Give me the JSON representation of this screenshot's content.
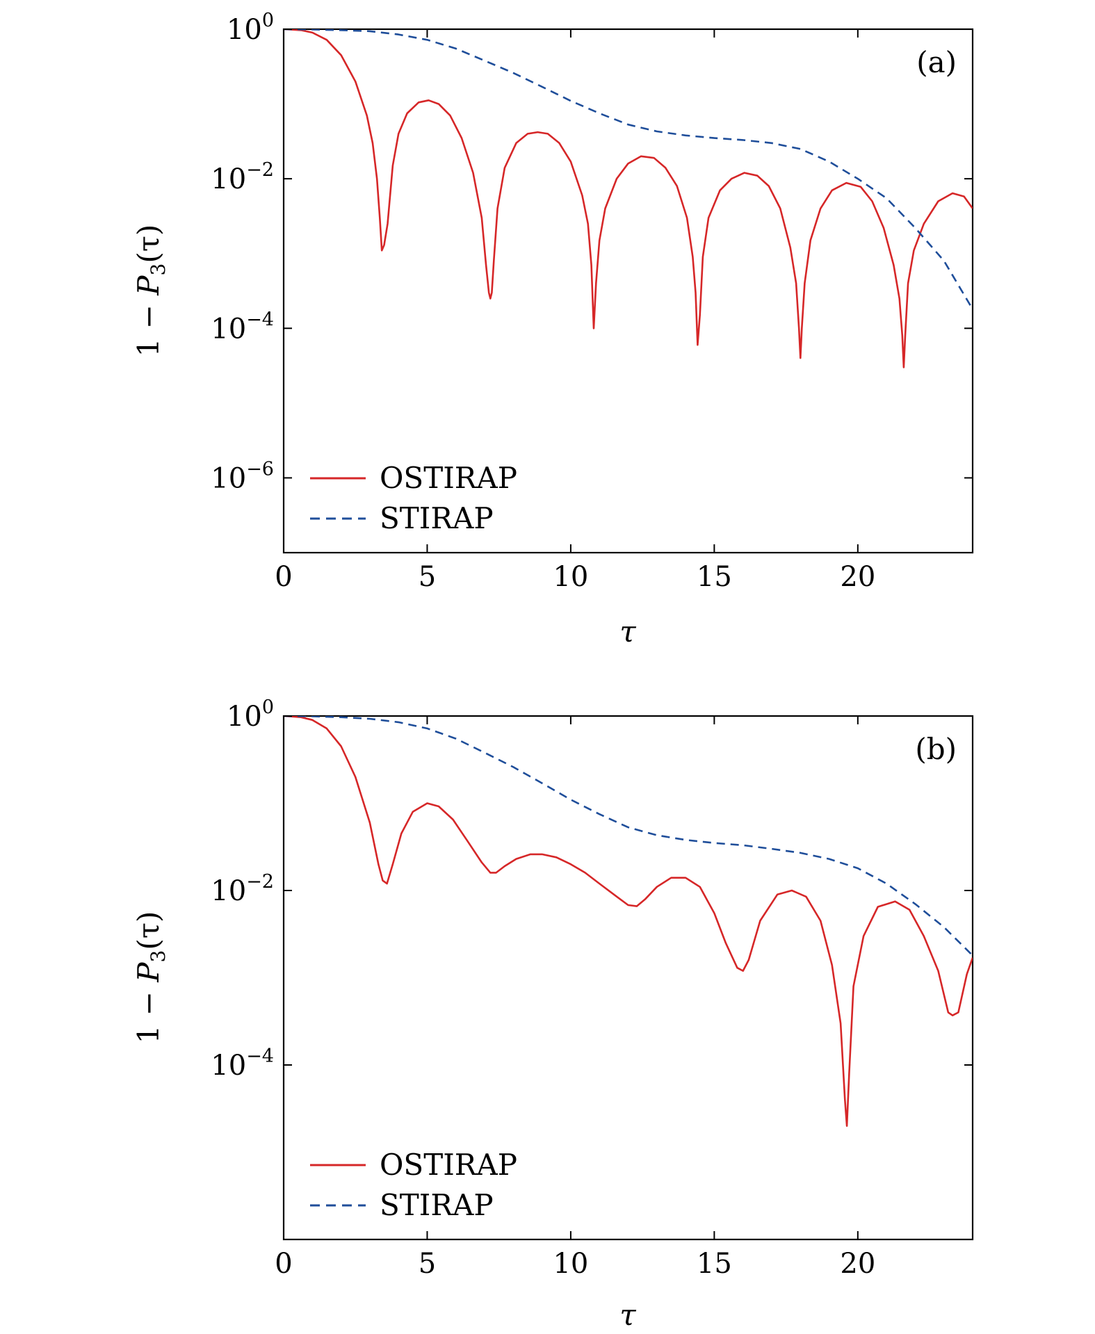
{
  "figure": {
    "x_axis_label": "τ",
    "y_axis_label_prefix": "1 − ",
    "y_axis_label_var": "P",
    "y_axis_label_sub": "3",
    "y_axis_label_suffix": "(τ)"
  },
  "colors": {
    "ostirap": "#d62728",
    "stirap": "#1f4e9a",
    "axis": "#000000"
  },
  "chart_data": [
    {
      "type": "line",
      "panel_label": "(a)",
      "xlabel": "τ",
      "ylabel": "1 − P3(τ)",
      "y_scale": "log",
      "xlim": [
        0,
        24
      ],
      "ylim": [
        1e-07,
        1
      ],
      "x_ticks": [
        0,
        5,
        10,
        15,
        20
      ],
      "y_ticks": [
        {
          "value": 1,
          "base": "10",
          "exp": "0"
        },
        {
          "value": 0.01,
          "base": "10",
          "exp": "−2"
        },
        {
          "value": 0.0001,
          "base": "10",
          "exp": "−4"
        },
        {
          "value": 1e-06,
          "base": "10",
          "exp": "−6"
        }
      ],
      "legend": {
        "position": "bottom-left",
        "entries": [
          "OSTIRAP",
          "STIRAP"
        ]
      },
      "series": [
        {
          "name": "OSTIRAP",
          "style": "solid",
          "x": [
            0,
            0.6,
            1.0,
            1.5,
            2.0,
            2.5,
            2.9,
            3.1,
            3.25,
            3.35,
            3.42,
            3.5,
            3.62,
            3.8,
            4.0,
            4.3,
            4.7,
            5.05,
            5.4,
            5.8,
            6.2,
            6.6,
            6.9,
            7.05,
            7.15,
            7.2,
            7.25,
            7.32,
            7.45,
            7.7,
            8.1,
            8.5,
            8.85,
            9.2,
            9.6,
            10.0,
            10.4,
            10.6,
            10.72,
            10.8,
            10.88,
            11.0,
            11.2,
            11.6,
            12.0,
            12.45,
            12.9,
            13.3,
            13.7,
            14.05,
            14.25,
            14.35,
            14.42,
            14.5,
            14.6,
            14.8,
            15.2,
            15.6,
            16.05,
            16.5,
            16.9,
            17.3,
            17.65,
            17.85,
            17.95,
            18.0,
            18.05,
            18.15,
            18.35,
            18.7,
            19.1,
            19.6,
            20.1,
            20.5,
            20.9,
            21.25,
            21.45,
            21.55,
            21.6,
            21.65,
            21.75,
            21.95,
            22.3,
            22.8,
            23.3,
            23.7,
            24.0
          ],
          "values": [
            1.0,
            0.97,
            0.9,
            0.72,
            0.45,
            0.2,
            0.07,
            0.03,
            0.01,
            0.003,
            0.0011,
            0.0013,
            0.0025,
            0.015,
            0.04,
            0.075,
            0.105,
            0.112,
            0.1,
            0.07,
            0.035,
            0.012,
            0.003,
            0.0007,
            0.0003,
            0.00025,
            0.0003,
            0.0008,
            0.004,
            0.014,
            0.03,
            0.04,
            0.042,
            0.04,
            0.03,
            0.017,
            0.006,
            0.0025,
            0.0007,
            0.0001,
            0.0004,
            0.0015,
            0.004,
            0.01,
            0.016,
            0.02,
            0.019,
            0.014,
            0.008,
            0.003,
            0.0009,
            0.0003,
            6e-05,
            0.00015,
            0.0009,
            0.003,
            0.007,
            0.01,
            0.012,
            0.011,
            0.008,
            0.004,
            0.0012,
            0.0004,
            0.0001,
            4e-05,
            0.0001,
            0.0004,
            0.0015,
            0.004,
            0.007,
            0.0088,
            0.0078,
            0.005,
            0.0022,
            0.0007,
            0.00025,
            8e-05,
            3e-05,
            8e-05,
            0.0004,
            0.0011,
            0.0025,
            0.005,
            0.0064,
            0.0058,
            0.004
          ]
        },
        {
          "name": "STIRAP",
          "style": "dashed",
          "x": [
            0,
            1,
            2,
            3,
            4,
            5,
            6,
            7,
            8,
            9,
            10,
            11,
            12,
            13,
            14,
            15,
            16,
            17,
            18,
            19,
            20,
            21,
            22,
            23,
            24
          ],
          "values": [
            1.0,
            0.99,
            0.97,
            0.94,
            0.85,
            0.72,
            0.55,
            0.38,
            0.26,
            0.17,
            0.11,
            0.075,
            0.053,
            0.043,
            0.038,
            0.035,
            0.033,
            0.03,
            0.025,
            0.017,
            0.01,
            0.0055,
            0.0022,
            0.0008,
            0.00018
          ]
        }
      ]
    },
    {
      "type": "line",
      "panel_label": "(b)",
      "xlabel": "τ",
      "ylabel": "1 − P3(τ)",
      "y_scale": "log",
      "xlim": [
        0,
        24
      ],
      "ylim": [
        1e-06,
        1
      ],
      "x_ticks": [
        0,
        5,
        10,
        15,
        20
      ],
      "y_ticks": [
        {
          "value": 1,
          "base": "10",
          "exp": "0"
        },
        {
          "value": 0.01,
          "base": "10",
          "exp": "−2"
        },
        {
          "value": 0.0001,
          "base": "10",
          "exp": "−4"
        }
      ],
      "legend": {
        "position": "bottom-left",
        "entries": [
          "OSTIRAP",
          "STIRAP"
        ]
      },
      "series": [
        {
          "name": "OSTIRAP",
          "style": "solid",
          "x": [
            0,
            0.6,
            1.0,
            1.5,
            2.0,
            2.5,
            3.0,
            3.3,
            3.45,
            3.6,
            3.8,
            4.1,
            4.5,
            5.0,
            5.4,
            5.9,
            6.4,
            6.9,
            7.2,
            7.4,
            7.7,
            8.1,
            8.6,
            9.0,
            9.5,
            10.0,
            10.5,
            11.0,
            11.5,
            12.0,
            12.3,
            12.6,
            13.0,
            13.5,
            14.0,
            14.5,
            15.0,
            15.4,
            15.8,
            16.0,
            16.2,
            16.6,
            17.2,
            17.7,
            18.2,
            18.7,
            19.1,
            19.4,
            19.55,
            19.62,
            19.7,
            19.85,
            20.2,
            20.7,
            21.3,
            21.8,
            22.3,
            22.8,
            23.15,
            23.3,
            23.5,
            23.8,
            24.0
          ],
          "values": [
            1.0,
            0.97,
            0.9,
            0.72,
            0.45,
            0.2,
            0.06,
            0.02,
            0.013,
            0.012,
            0.02,
            0.045,
            0.08,
            0.1,
            0.092,
            0.065,
            0.037,
            0.021,
            0.016,
            0.016,
            0.019,
            0.023,
            0.026,
            0.026,
            0.024,
            0.02,
            0.016,
            0.012,
            0.009,
            0.0068,
            0.0066,
            0.008,
            0.011,
            0.014,
            0.014,
            0.011,
            0.0055,
            0.0025,
            0.0013,
            0.0012,
            0.0016,
            0.0045,
            0.009,
            0.01,
            0.0085,
            0.0045,
            0.0014,
            0.0003,
            4e-05,
            2e-05,
            8e-05,
            0.0008,
            0.003,
            0.0065,
            0.0075,
            0.006,
            0.003,
            0.0012,
            0.0004,
            0.00037,
            0.0004,
            0.0011,
            0.0017
          ]
        },
        {
          "name": "STIRAP",
          "style": "dashed",
          "x": [
            0,
            1,
            2,
            3,
            4,
            5,
            6,
            7,
            8,
            9,
            10,
            11,
            12,
            13,
            14,
            15,
            16,
            17,
            18,
            19,
            20,
            21,
            22,
            23,
            24
          ],
          "values": [
            1.0,
            0.99,
            0.97,
            0.93,
            0.85,
            0.72,
            0.55,
            0.38,
            0.26,
            0.17,
            0.11,
            0.075,
            0.053,
            0.043,
            0.038,
            0.035,
            0.033,
            0.03,
            0.027,
            0.023,
            0.018,
            0.012,
            0.007,
            0.0038,
            0.0018
          ]
        }
      ]
    }
  ]
}
